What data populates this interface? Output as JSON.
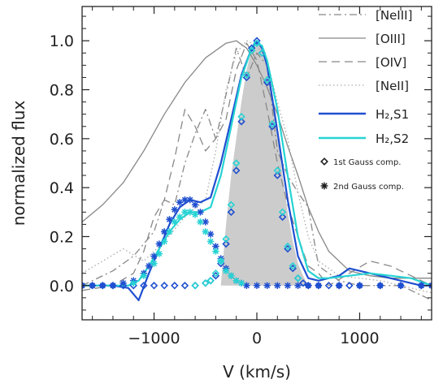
{
  "chart_data": {
    "type": "line",
    "xlabel": "V (km/s)",
    "ylabel": "normalized flux",
    "xlim": [
      -1700,
      1700
    ],
    "ylim": [
      -0.14,
      1.14
    ],
    "x_ticks": [
      -1000,
      0,
      1000
    ],
    "x_tick_labels": [
      "−1000",
      "0",
      "1000"
    ],
    "y_ticks": [
      0.0,
      0.2,
      0.4,
      0.6,
      0.8,
      1.0
    ],
    "y_tick_labels": [
      "0.0",
      "0.2",
      "0.4",
      "0.6",
      "0.8",
      "1.0"
    ],
    "grid": false,
    "legend_position": "top-right",
    "colors": {
      "gray": "#888888",
      "lightgray": "#aaaaaa",
      "fill": "#cccccc",
      "blue": "#1f4fd0",
      "cyan": "#27d3d3"
    },
    "series": [
      {
        "name": "[NeIII]",
        "style": "dashdot",
        "color": "#888888",
        "x": [
          -1700,
          -1400,
          -1200,
          -1000,
          -900,
          -800,
          -700,
          -600,
          -500,
          -400,
          -300,
          -200,
          -100,
          0,
          100,
          200,
          300,
          400,
          500,
          600,
          800,
          1000,
          1200,
          1400,
          1600,
          1700
        ],
        "y": [
          0.0,
          0.06,
          0.12,
          0.22,
          0.35,
          0.33,
          0.5,
          0.62,
          0.72,
          0.6,
          0.78,
          0.97,
          0.85,
          0.95,
          0.9,
          0.55,
          0.45,
          0.38,
          0.32,
          0.08,
          0.02,
          0.0,
          0.0,
          0.0,
          -0.04,
          -0.06
        ]
      },
      {
        "name": "[OIII]",
        "style": "solid",
        "color": "#888888",
        "x": [
          -1700,
          -1500,
          -1300,
          -1100,
          -900,
          -700,
          -500,
          -300,
          -200,
          -100,
          0,
          100,
          200,
          300,
          400,
          500,
          600,
          700,
          900,
          1100,
          1300,
          1500,
          1700
        ],
        "y": [
          0.26,
          0.33,
          0.42,
          0.55,
          0.7,
          0.83,
          0.93,
          0.99,
          1.0,
          0.97,
          0.9,
          0.81,
          0.7,
          0.57,
          0.45,
          0.32,
          0.22,
          0.14,
          0.06,
          0.04,
          0.03,
          0.03,
          0.03
        ]
      },
      {
        "name": "[OIV]",
        "style": "dashed",
        "color": "#888888",
        "x": [
          -1700,
          -1400,
          -1200,
          -1100,
          -1000,
          -900,
          -800,
          -700,
          -600,
          -500,
          -400,
          -300,
          -200,
          -100,
          0,
          100,
          200,
          300,
          400,
          500,
          600,
          700,
          900,
          1100,
          1300,
          1500,
          1700
        ],
        "y": [
          -0.02,
          0.0,
          0.05,
          0.14,
          0.28,
          0.35,
          0.52,
          0.72,
          0.65,
          0.55,
          0.6,
          0.68,
          0.88,
          0.99,
          0.92,
          0.72,
          0.5,
          0.33,
          0.2,
          0.08,
          0.05,
          0.0,
          0.05,
          0.1,
          0.08,
          0.04,
          0.0
        ]
      },
      {
        "name": "[NeII]",
        "style": "dotted",
        "color": "#aaaaaa",
        "x": [
          -1700,
          -1500,
          -1300,
          -1100,
          -900,
          -700,
          -500,
          -400,
          -300,
          -200,
          -100,
          0,
          100,
          200,
          300,
          400,
          500,
          600,
          800,
          1000,
          1200,
          1400,
          1700
        ],
        "y": [
          0.05,
          0.1,
          0.15,
          0.1,
          0.18,
          0.28,
          0.35,
          0.55,
          0.8,
          0.95,
          1.0,
          0.98,
          0.92,
          0.75,
          0.6,
          0.38,
          0.2,
          0.1,
          0.04,
          0.03,
          0.02,
          0.0,
          -0.03
        ]
      },
      {
        "name": "H₂,S1",
        "style": "solid-thick",
        "color": "#1f4fd0",
        "x": [
          -1700,
          -1400,
          -1250,
          -1150,
          -1050,
          -950,
          -850,
          -750,
          -650,
          -550,
          -450,
          -350,
          -250,
          -150,
          -50,
          0,
          50,
          100,
          200,
          300,
          400,
          500,
          600,
          700,
          800,
          900,
          1000,
          1200,
          1400,
          1600,
          1700
        ],
        "y": [
          0.0,
          0.0,
          -0.01,
          -0.06,
          0.05,
          0.15,
          0.25,
          0.32,
          0.35,
          0.34,
          0.36,
          0.5,
          0.68,
          0.86,
          0.97,
          1.0,
          0.97,
          0.9,
          0.63,
          0.35,
          0.12,
          0.03,
          0.02,
          0.03,
          0.04,
          0.07,
          0.06,
          0.04,
          0.02,
          0.0,
          0.0
        ]
      },
      {
        "name": "H₂,S2",
        "style": "solid-thick",
        "color": "#27d3d3",
        "x": [
          -1700,
          -1400,
          -1250,
          -1150,
          -1050,
          -950,
          -850,
          -750,
          -650,
          -550,
          -450,
          -350,
          -250,
          -150,
          -50,
          0,
          50,
          100,
          200,
          300,
          400,
          500,
          600,
          700,
          900,
          1100,
          1300,
          1500,
          1700
        ],
        "y": [
          0.0,
          0.0,
          0.0,
          0.02,
          0.08,
          0.15,
          0.22,
          0.27,
          0.3,
          0.3,
          0.32,
          0.45,
          0.65,
          0.85,
          0.97,
          0.99,
          0.98,
          0.92,
          0.72,
          0.45,
          0.2,
          0.06,
          0.03,
          0.03,
          0.04,
          0.05,
          0.04,
          0.03,
          0.0
        ]
      },
      {
        "name": "1st Gauss comp.",
        "style": "markers-diamond",
        "color": "#1f4fd0",
        "x": [
          -1700,
          -1600,
          -1500,
          -1400,
          -1300,
          -1200,
          -1100,
          -1000,
          -900,
          -800,
          -700,
          -600,
          -500,
          -450,
          -400,
          -350,
          -300,
          -250,
          -200,
          -150,
          -100,
          -50,
          0,
          50,
          100,
          150,
          200,
          250,
          300,
          350,
          400,
          450,
          500,
          600,
          700,
          800,
          900,
          1000,
          1200,
          1400,
          1600,
          1700
        ],
        "y": [
          0.0,
          0.0,
          0.0,
          0.0,
          0.0,
          0.0,
          0.0,
          0.0,
          0.0,
          0.0,
          0.0,
          0.0,
          0.01,
          0.02,
          0.04,
          0.09,
          0.17,
          0.3,
          0.47,
          0.67,
          0.85,
          0.97,
          1.0,
          0.95,
          0.83,
          0.65,
          0.45,
          0.28,
          0.15,
          0.07,
          0.03,
          0.01,
          0.0,
          0.0,
          0.0,
          0.0,
          0.0,
          0.0,
          0.0,
          0.0,
          0.0,
          0.0
        ]
      },
      {
        "name": "2nd Gauss comp.",
        "style": "markers-asterisk",
        "color": "#1f4fd0",
        "x": [
          -1700,
          -1600,
          -1500,
          -1400,
          -1300,
          -1200,
          -1100,
          -1050,
          -1000,
          -950,
          -900,
          -850,
          -800,
          -750,
          -700,
          -650,
          -600,
          -550,
          -500,
          -450,
          -400,
          -350,
          -300,
          -250,
          -200,
          -150,
          -100,
          0,
          100,
          200,
          300,
          400,
          500,
          600,
          800,
          1000,
          1200,
          1400,
          1600,
          1700
        ],
        "y": [
          0.0,
          0.0,
          0.0,
          0.0,
          0.01,
          0.02,
          0.05,
          0.08,
          0.12,
          0.17,
          0.22,
          0.27,
          0.31,
          0.34,
          0.35,
          0.35,
          0.33,
          0.3,
          0.26,
          0.21,
          0.16,
          0.11,
          0.07,
          0.04,
          0.02,
          0.01,
          0.0,
          0.0,
          0.0,
          0.0,
          0.0,
          0.0,
          0.0,
          0.0,
          0.0,
          0.0,
          0.0,
          0.0,
          0.0,
          0.0
        ]
      },
      {
        "name": "H₂,S2 1st Gauss comp.",
        "style": "markers-diamond",
        "color": "#27d3d3",
        "x": [
          -600,
          -500,
          -450,
          -400,
          -350,
          -300,
          -250,
          -200,
          -150,
          -100,
          -50,
          0,
          50,
          100,
          150,
          200,
          250,
          300,
          350,
          400
        ],
        "y": [
          0.0,
          0.01,
          0.02,
          0.05,
          0.1,
          0.19,
          0.33,
          0.5,
          0.69,
          0.86,
          0.96,
          0.99,
          0.95,
          0.84,
          0.66,
          0.47,
          0.3,
          0.16,
          0.08,
          0.03
        ]
      },
      {
        "name": "H₂,S2 2nd Gauss comp.",
        "style": "markers-asterisk",
        "color": "#27d3d3",
        "x": [
          -1200,
          -1100,
          -1000,
          -950,
          -900,
          -850,
          -800,
          -750,
          -700,
          -650,
          -600,
          -550,
          -500,
          -450,
          -400,
          -350,
          -300,
          -250,
          -200,
          -150
        ],
        "y": [
          0.01,
          0.04,
          0.09,
          0.13,
          0.18,
          0.22,
          0.26,
          0.28,
          0.3,
          0.3,
          0.29,
          0.26,
          0.22,
          0.18,
          0.14,
          0.1,
          0.06,
          0.04,
          0.02,
          0.01
        ]
      },
      {
        "name": "shaded",
        "style": "fill",
        "color": "#cccccc",
        "x": [
          -350,
          -300,
          -250,
          -200,
          -150,
          -100,
          -50,
          0,
          50,
          100,
          150,
          200,
          250,
          300,
          350,
          400,
          450,
          500
        ],
        "y": [
          0.0,
          0.25,
          0.45,
          0.6,
          0.75,
          0.88,
          0.97,
          1.0,
          0.97,
          0.9,
          0.78,
          0.62,
          0.45,
          0.3,
          0.18,
          0.09,
          0.04,
          0.0
        ]
      }
    ],
    "legend": [
      {
        "label": "[NeIII]",
        "style": "dashdot",
        "color": "#888888"
      },
      {
        "label": "[OIII]",
        "style": "solid",
        "color": "#888888"
      },
      {
        "label": "[OIV]",
        "style": "dashed",
        "color": "#888888"
      },
      {
        "label": "[NeII]",
        "style": "dotted",
        "color": "#aaaaaa"
      },
      {
        "label": "H₂,S1",
        "style": "solid-thick",
        "color": "#1f4fd0"
      },
      {
        "label": "H₂,S2",
        "style": "solid-thick",
        "color": "#27d3d3"
      },
      {
        "label": "1st Gauss comp.",
        "style": "marker-diamond",
        "color": "#222222"
      },
      {
        "label": "2nd Gauss comp.",
        "style": "marker-asterisk",
        "color": "#222222"
      }
    ]
  }
}
